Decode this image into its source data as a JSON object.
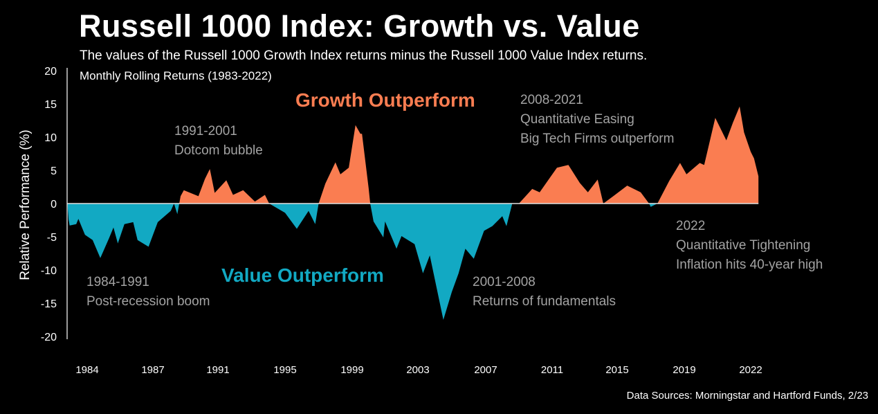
{
  "title": "Russell 1000 Index: Growth vs. Value",
  "subtitle": "The values of the Russell 1000 Growth Index returns minus the Russell 1000 Value Index returns.",
  "note": "Monthly Rolling Returns (1983-2022)",
  "footer": "Data Sources: Morningstar and Hartford Funds, 2/23",
  "colors": {
    "positive": "#FA7D51",
    "negative": "#12A9C3",
    "background": "#000000",
    "annotation": "#A3A3A3"
  },
  "annotations": {
    "growth": "Growth Outperform",
    "value": "Value Outperform",
    "a1984": "1984-1991\nPost-recession boom",
    "a1991": "1991-2001\nDotcom bubble",
    "a2001": "2001-2008\nReturns of fundamentals",
    "a2008": "2008-2021\nQuantitative Easing\nBig Tech Firms outperform",
    "a2022": "2022\nQuantitative Tightening\nInflation hits 40-year high"
  },
  "chart_data": {
    "type": "area",
    "title": "Russell 1000 Index: Growth vs. Value",
    "xlabel": "",
    "ylabel": "Relative Performance (%)",
    "ylim": [
      -20,
      20
    ],
    "yticks": [
      "20",
      "15",
      "10",
      "5",
      "0",
      "-5",
      "-10",
      "-15",
      "-20"
    ],
    "xticks": [
      "1984",
      "1987",
      "1991",
      "1995",
      "1999",
      "2003",
      "2007",
      "2011",
      "2015",
      "2019",
      "2022"
    ],
    "grid": false,
    "legend": "none",
    "fill_rule": "orange above 0 (Growth outperform), teal below 0 (Value outperform)",
    "x": [
      1983.1,
      1983.15,
      1983.2,
      1983.5,
      1983.6,
      1983.9,
      1984.25,
      1984.6,
      1985.0,
      1985.2,
      1985.4,
      1985.7,
      1986.1,
      1986.3,
      1986.8,
      1987.3,
      1988.1,
      1988.3,
      1988.5,
      1988.7,
      1988.9,
      1989.8,
      1990.2,
      1990.5,
      1990.8,
      1991.5,
      1991.9,
      1992.5,
      1993.2,
      1993.8,
      1994.05,
      1995.0,
      1995.7,
      1996.4,
      1996.8,
      1997.0,
      1997.4,
      1998.0,
      1998.3,
      1998.8,
      1999.2,
      1999.5,
      1999.6,
      2000.0,
      2000.1,
      2000.3,
      2000.9,
      2001.0,
      2001.7,
      2002.0,
      2002.8,
      2003.3,
      2003.7,
      2004.5,
      2005.0,
      2005.4,
      2005.8,
      2006.3,
      2006.9,
      2007.4,
      2008.0,
      2008.25,
      2008.6,
      2009.0,
      2009.8,
      2010.25,
      2011.3,
      2012.0,
      2012.7,
      2013.2,
      2013.8,
      2014.15,
      2014.7,
      2015.6,
      2016.4,
      2016.9,
      2017.0,
      2017.4,
      2018.1,
      2018.75,
      2019.1,
      2019.7,
      2019.9,
      2020.4,
      2020.9,
      2021.2,
      2021.5,
      2021.7,
      2022.0,
      2022.15,
      2022.35
    ],
    "y": [
      0,
      -2.4,
      -3.3,
      -3.1,
      -2.3,
      -4.7,
      -5.5,
      -8.2,
      -5.2,
      -3.6,
      -6.0,
      -3.1,
      -2.8,
      -5.5,
      -6.5,
      -2.8,
      -1.1,
      0,
      -1.6,
      1.1,
      2.0,
      1.1,
      3.7,
      5.2,
      1.6,
      3.5,
      1.3,
      2.0,
      0.3,
      1.3,
      0,
      -1.4,
      -3.8,
      -1.1,
      -3.1,
      0,
      3.0,
      6.2,
      4.4,
      5.4,
      11.8,
      10.5,
      10.5,
      2.3,
      0,
      -2.7,
      -5.1,
      -2.7,
      -6.8,
      -4.9,
      -6.1,
      -10.5,
      -7.8,
      -17.5,
      -13.3,
      -10.5,
      -6.8,
      -8.3,
      -4.1,
      -3.4,
      -1.9,
      -3.4,
      0,
      0,
      2.2,
      1.7,
      5.4,
      5.8,
      3.1,
      1.7,
      3.6,
      0,
      1.0,
      2.7,
      1.7,
      0,
      -0.5,
      0,
      3.4,
      6.1,
      4.4,
      6.1,
      5.8,
      12.9,
      9.5,
      12.2,
      14.6,
      10.7,
      7.8,
      6.8,
      4.1
    ]
  }
}
